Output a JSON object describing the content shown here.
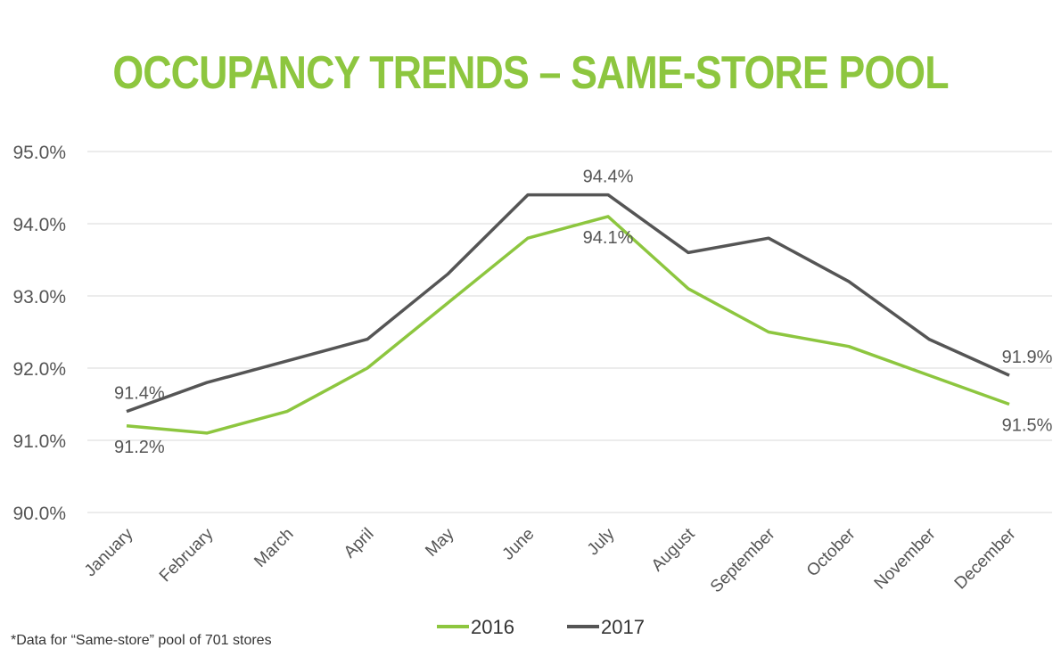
{
  "title": "OCCUPANCY TRENDS – SAME-STORE POOL",
  "footnote": "*Data for “Same-store” pool of 701 stores",
  "colors": {
    "title": "#8dc63f",
    "s2016": "#8dc63f",
    "s2017": "#555555",
    "grid": "#d9d9d9",
    "text": "#555555"
  },
  "chart_data": {
    "type": "line",
    "title": "OCCUPANCY TRENDS – SAME-STORE POOL",
    "categories": [
      "January",
      "February",
      "March",
      "April",
      "May",
      "June",
      "July",
      "August",
      "September",
      "October",
      "November",
      "December"
    ],
    "ylim": [
      90.0,
      95.0
    ],
    "yticks": [
      90.0,
      91.0,
      92.0,
      93.0,
      94.0,
      95.0
    ],
    "ytick_labels": [
      "90.0%",
      "91.0%",
      "92.0%",
      "93.0%",
      "94.0%",
      "95.0%"
    ],
    "grid": true,
    "legend": "bottom",
    "series": [
      {
        "name": "2016",
        "color": "#8dc63f",
        "values": [
          91.2,
          91.1,
          91.4,
          92.0,
          92.9,
          93.8,
          94.1,
          93.1,
          92.5,
          92.3,
          91.9,
          91.5
        ],
        "labels": [
          {
            "index": 0,
            "text": "91.2%",
            "pos": "below"
          },
          {
            "index": 6,
            "text": "94.1%",
            "pos": "below"
          },
          {
            "index": 11,
            "text": "91.5%",
            "pos": "below"
          }
        ]
      },
      {
        "name": "2017",
        "color": "#555555",
        "values": [
          91.4,
          91.8,
          92.1,
          92.4,
          93.3,
          94.4,
          94.4,
          93.6,
          93.8,
          93.2,
          92.4,
          91.9
        ],
        "labels": [
          {
            "index": 0,
            "text": "91.4%",
            "pos": "above"
          },
          {
            "index": 6,
            "text": "94.4%",
            "pos": "above"
          },
          {
            "index": 11,
            "text": "91.9%",
            "pos": "above"
          }
        ]
      }
    ]
  }
}
